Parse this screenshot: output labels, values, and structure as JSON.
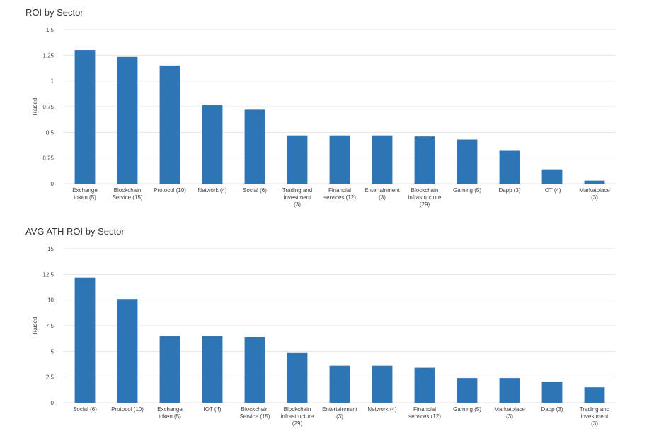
{
  "colors": {
    "bar": "#2e75b6",
    "grid": "#e6e6e6",
    "axis_text": "#444444"
  },
  "chart_data": [
    {
      "type": "bar",
      "title": "ROI by Sector",
      "xlabel": "",
      "ylabel": "Raised",
      "ylim": [
        0,
        1.5
      ],
      "yticks": [
        "0",
        "0.25",
        "0.5",
        "0.75",
        "1",
        "1.25",
        "1.5"
      ],
      "grid": true,
      "categories": [
        "Exchange token (5)",
        "Blockchain Service (15)",
        "Protocol (10)",
        "Network (4)",
        "Social (6)",
        "Trading and investment (3)",
        "Financial services (12)",
        "Entertainment (3)",
        "Blockchain infrastructure (29)",
        "Gaming (5)",
        "Dapp (3)",
        "IOT (4)",
        "Marketplace (3)"
      ],
      "values": [
        1.3,
        1.24,
        1.15,
        0.77,
        0.72,
        0.47,
        0.47,
        0.47,
        0.46,
        0.43,
        0.32,
        0.14,
        0.03
      ]
    },
    {
      "type": "bar",
      "title": "AVG ATH ROI by Sector",
      "xlabel": "",
      "ylabel": "Raised",
      "ylim": [
        0,
        15
      ],
      "yticks": [
        "0",
        "2.5",
        "5",
        "7.5",
        "10",
        "12.5",
        "15"
      ],
      "grid": true,
      "categories": [
        "Social (6)",
        "Protocol (10)",
        "Exchange token (5)",
        "IOT (4)",
        "Blockchain Service (15)",
        "Blockchain infrastructure (29)",
        "Entertainment (3)",
        "Network (4)",
        "Financial services (12)",
        "Gaming (5)",
        "Marketplace (3)",
        "Dapp (3)",
        "Trading and investment (3)"
      ],
      "values": [
        12.2,
        10.1,
        6.5,
        6.5,
        6.4,
        4.9,
        3.6,
        3.6,
        3.4,
        2.4,
        2.4,
        2.0,
        1.5
      ]
    }
  ]
}
